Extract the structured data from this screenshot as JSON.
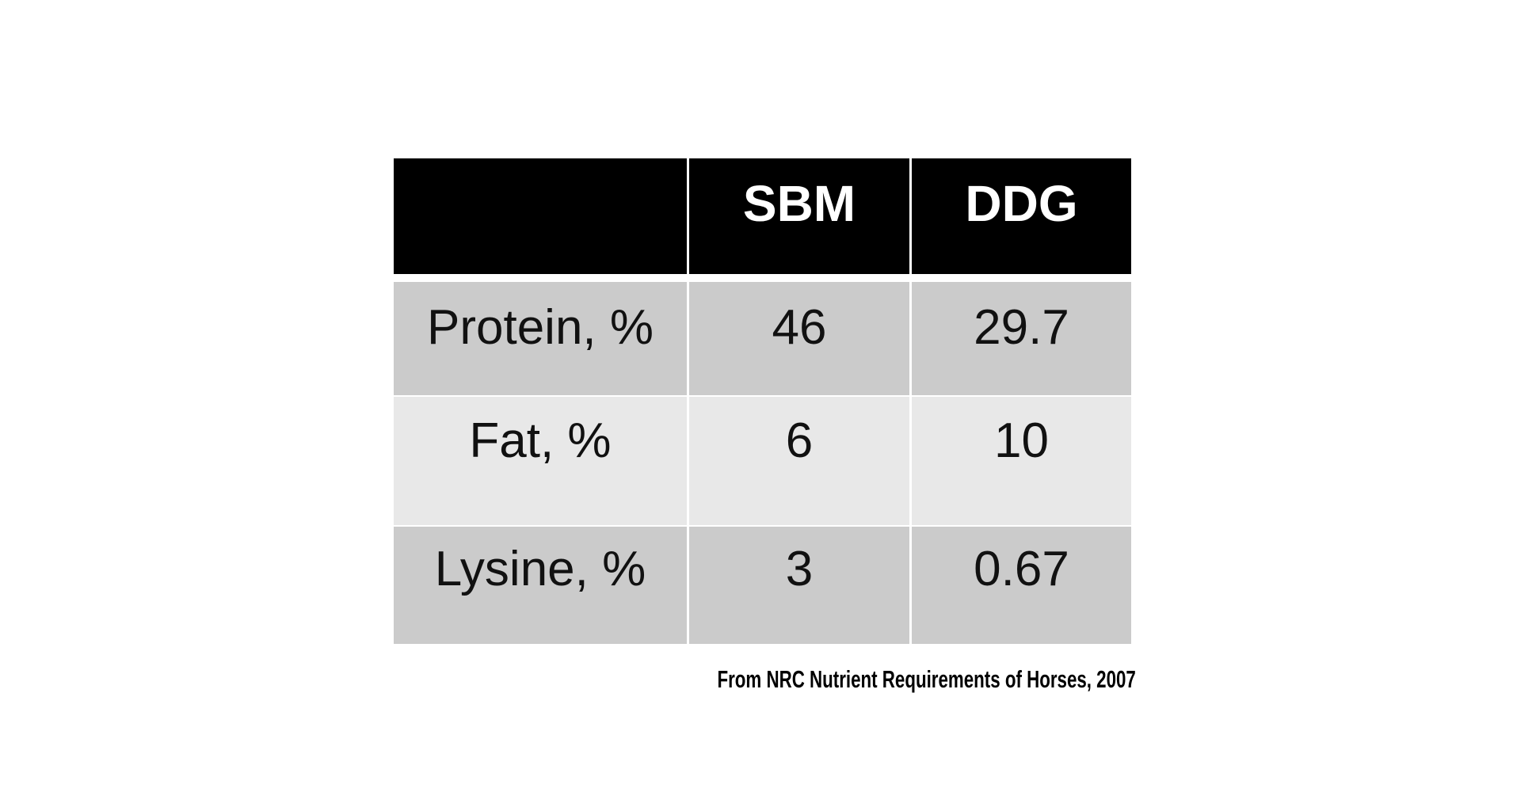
{
  "table": {
    "headers": [
      "",
      "SBM",
      "DDG"
    ],
    "rows": [
      [
        "Protein, %",
        "46",
        "29.7"
      ],
      [
        "Fat, %",
        "6",
        "10"
      ],
      [
        "Lysine, %",
        "3",
        "0.67"
      ]
    ]
  },
  "caption": "From NRC Nutrient Requirements of Horses, 2007"
}
